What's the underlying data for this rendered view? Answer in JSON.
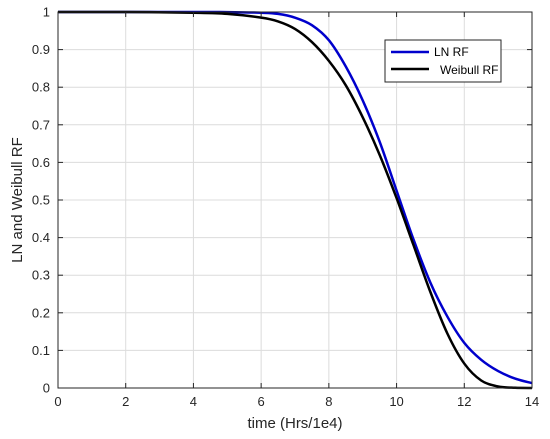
{
  "chart_data": {
    "type": "line",
    "xlabel": "time (Hrs/1e4)",
    "ylabel": "LN and Weibull RF",
    "xlim": [
      0,
      14
    ],
    "ylim": [
      0,
      1
    ],
    "x_ticks": [
      "0",
      "2",
      "4",
      "6",
      "8",
      "10",
      "12",
      "14"
    ],
    "y_ticks": [
      "0",
      "0.1",
      "0.2",
      "0.3",
      "0.4",
      "0.5",
      "0.6",
      "0.7",
      "0.8",
      "0.9",
      "1"
    ],
    "grid": true,
    "legend_position": "top-right",
    "series": [
      {
        "name": "LN RF",
        "color": "#0000cc",
        "points": [
          [
            0,
            1.0
          ],
          [
            4,
            1.0
          ],
          [
            5,
            0.9998
          ],
          [
            6,
            0.998
          ],
          [
            6.5,
            0.995
          ],
          [
            7,
            0.985
          ],
          [
            7.5,
            0.965
          ],
          [
            8,
            0.925
          ],
          [
            8.5,
            0.855
          ],
          [
            9,
            0.765
          ],
          [
            9.5,
            0.655
          ],
          [
            10,
            0.525
          ],
          [
            10.5,
            0.395
          ],
          [
            11,
            0.28
          ],
          [
            11.5,
            0.19
          ],
          [
            12,
            0.12
          ],
          [
            12.5,
            0.075
          ],
          [
            13,
            0.045
          ],
          [
            13.5,
            0.025
          ],
          [
            14,
            0.013
          ]
        ]
      },
      {
        "name": "Weibull RF",
        "color": "#000000",
        "points": [
          [
            0,
            1.0
          ],
          [
            2,
            1.0
          ],
          [
            4,
            0.998
          ],
          [
            5,
            0.995
          ],
          [
            6,
            0.985
          ],
          [
            6.5,
            0.975
          ],
          [
            7,
            0.955
          ],
          [
            7.5,
            0.92
          ],
          [
            8,
            0.87
          ],
          [
            8.5,
            0.805
          ],
          [
            9,
            0.72
          ],
          [
            9.5,
            0.62
          ],
          [
            10,
            0.505
          ],
          [
            10.5,
            0.38
          ],
          [
            11,
            0.255
          ],
          [
            11.5,
            0.145
          ],
          [
            12,
            0.065
          ],
          [
            12.5,
            0.02
          ],
          [
            13,
            0.004
          ],
          [
            13.5,
            0.0005
          ],
          [
            14,
            0.0
          ]
        ]
      }
    ]
  }
}
